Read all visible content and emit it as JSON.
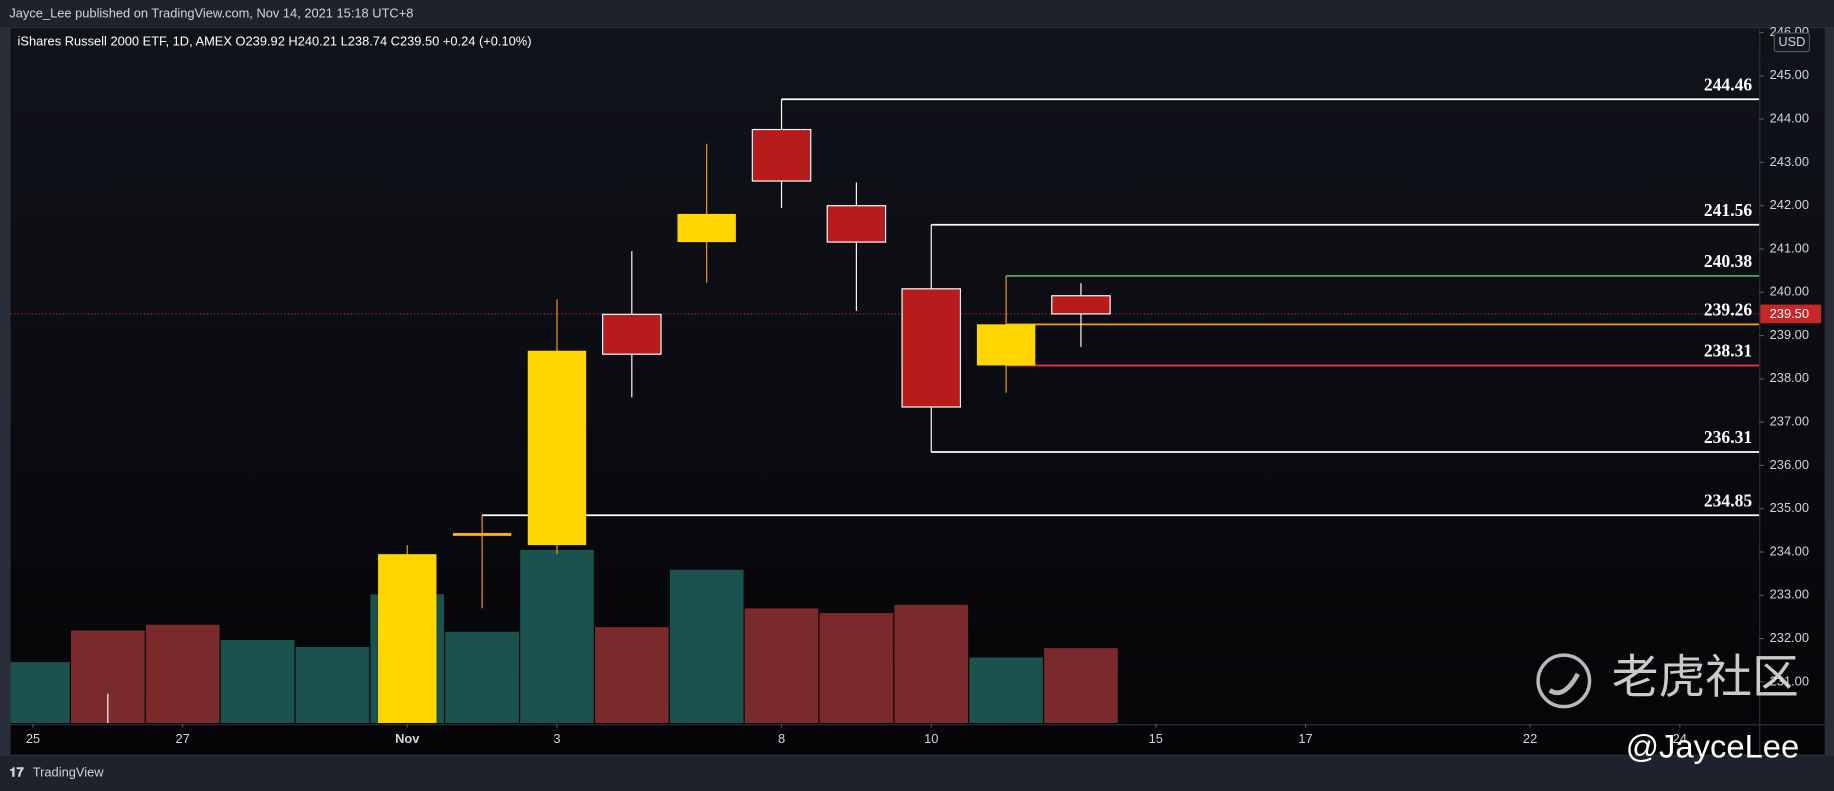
{
  "header": "Jayce_Lee published on TradingView.com, Nov 14, 2021 15:18 UTC+8",
  "footer": "TradingView",
  "watermark": "老虎社区",
  "author_tag": "@JayceLee",
  "chart_data": {
    "type": "candlestick",
    "title": "iShares Russell 2000 ETF, 1D, AMEX  O239.92  H240.21  L238.74  C239.50  +0.24 (+0.10%)",
    "currency": "USD",
    "ylim": [
      230.05,
      246.1
    ],
    "yticks": [
      {
        "value": 231,
        "label": "231.00"
      },
      {
        "value": 232,
        "label": "232.00"
      },
      {
        "value": 233,
        "label": "233.00"
      },
      {
        "value": 234,
        "label": "234.00"
      },
      {
        "value": 235,
        "label": "235.00"
      },
      {
        "value": 236,
        "label": "236.00"
      },
      {
        "value": 237,
        "label": "237.00"
      },
      {
        "value": 238,
        "label": "238.00"
      },
      {
        "value": 239,
        "label": "239.00"
      },
      {
        "value": 240,
        "label": "240.00"
      },
      {
        "value": 241,
        "label": "241.00"
      },
      {
        "value": 242,
        "label": "242.00"
      },
      {
        "value": 243,
        "label": "243.00"
      },
      {
        "value": 244,
        "label": "244.00"
      },
      {
        "value": 245,
        "label": "245.00"
      },
      {
        "value": 246,
        "label": "246.00"
      }
    ],
    "xlim": [
      -0.3,
      23.06
    ],
    "xticks": [
      {
        "value": 0,
        "label": "25"
      },
      {
        "value": 2,
        "label": "27"
      },
      {
        "value": 5,
        "label": "Nov"
      },
      {
        "value": 7,
        "label": "3"
      },
      {
        "value": 10,
        "label": "8"
      },
      {
        "value": 12,
        "label": "10"
      },
      {
        "value": 15,
        "label": "15"
      },
      {
        "value": 17,
        "label": "17"
      },
      {
        "value": 20,
        "label": "22"
      },
      {
        "value": 22,
        "label": "24"
      }
    ],
    "grid": false,
    "candles": [
      {
        "x": 1,
        "open": null,
        "high": 230.73,
        "low": null,
        "close": null,
        "color": "#b71c1c",
        "wick": "#ffffff"
      },
      {
        "x": 5,
        "open": null,
        "high": 234.16,
        "low": null,
        "close": 233.95,
        "color": "#ffd600",
        "wick": "#f29a1d"
      },
      {
        "x": 6,
        "open": 234.42,
        "high": 234.86,
        "low": 232.7,
        "close": 234.44,
        "color": "#ffb300",
        "wick": "#f29a1d"
      },
      {
        "x": 7,
        "open": 234.16,
        "high": 239.84,
        "low": 233.95,
        "close": 238.65,
        "color": "#ffd600",
        "wick": "#f29a1d"
      },
      {
        "x": 8,
        "open": 239.49,
        "high": 240.95,
        "low": 237.57,
        "close": 238.57,
        "color": "#b71c1c",
        "wick": "#ffffff"
      },
      {
        "x": 9,
        "open": 241.16,
        "high": 243.43,
        "low": 240.22,
        "close": 241.81,
        "color": "#ffd600",
        "wick": "#f29a1d"
      },
      {
        "x": 10,
        "open": 243.76,
        "high": 244.46,
        "low": 241.95,
        "close": 242.57,
        "color": "#b71c1c",
        "wick": "#ffffff"
      },
      {
        "x": 11,
        "open": 242.0,
        "high": 242.54,
        "low": 239.57,
        "close": 241.16,
        "color": "#b71c1c",
        "wick": "#ffffff"
      },
      {
        "x": 12,
        "open": 240.08,
        "high": 241.56,
        "low": 236.31,
        "close": 237.35,
        "color": "#b71c1c",
        "wick": "#ffffff"
      },
      {
        "x": 13,
        "open": 238.31,
        "high": 240.38,
        "low": 237.68,
        "close": 239.26,
        "color": "#ffd600",
        "wick": "#f29a1d"
      },
      {
        "x": 14,
        "open": 239.92,
        "high": 240.21,
        "low": 238.74,
        "close": 239.5,
        "color": "#b71c1c",
        "wick": "#ffffff"
      }
    ],
    "volume": {
      "ylim": [
        0,
        594
      ],
      "x": [
        0,
        1,
        2,
        3,
        4,
        5,
        6,
        7,
        8,
        9,
        10,
        11,
        12,
        13,
        14
      ],
      "values": [
        52,
        79,
        84,
        71,
        65,
        110,
        78,
        148,
        82,
        131,
        98,
        94,
        101,
        56,
        64
      ],
      "colors": [
        "#1b524d",
        "#7a2a2a",
        "#7a2a2a",
        "#1b524d",
        "#1b524d",
        "#1b524d",
        "#1b524d",
        "#1b524d",
        "#7a2a2a",
        "#1b524d",
        "#7a2a2a",
        "#7a2a2a",
        "#7a2a2a",
        "#1b524d",
        "#7a2a2a"
      ]
    },
    "levels": [
      {
        "value": 244.46,
        "start": 10,
        "color": "#ffffff"
      },
      {
        "value": 241.56,
        "start": 12,
        "color": "#ffffff"
      },
      {
        "value": 240.38,
        "start": 13,
        "color": "#4caf50"
      },
      {
        "value": 239.26,
        "start": 13,
        "color": "#ff9800"
      },
      {
        "value": 238.31,
        "start": 13,
        "color": "#f23645"
      },
      {
        "value": 236.31,
        "start": 12,
        "color": "#ffffff"
      },
      {
        "value": 234.85,
        "start": 6,
        "color": "#ffffff"
      }
    ],
    "last_price": {
      "value": 239.5,
      "label": "239.50",
      "color": "#c62828"
    }
  }
}
